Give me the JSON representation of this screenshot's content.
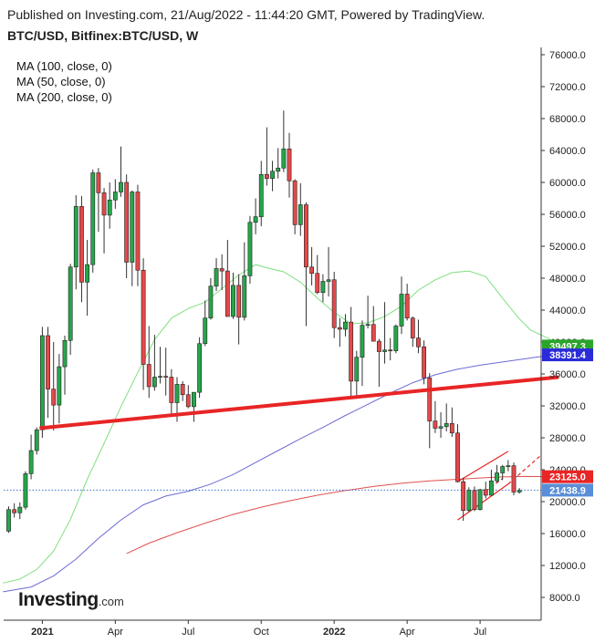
{
  "header": {
    "published": "Published on Investing.com, 21/Aug/2022 - 11:44:20 GMT, Powered by TradingView.",
    "symbol": "BTC/USD, Bitfinex:BTC/USD, W"
  },
  "indicators": [
    {
      "label": "MA (100, close, 0)",
      "color": "#6b6bd6"
    },
    {
      "label": "MA (50, close, 0)",
      "color": "#7ee07e"
    },
    {
      "label": "MA (200, close, 0)",
      "color": "#e05050"
    }
  ],
  "logo": {
    "brand": "Investing",
    "domain": ".com"
  },
  "chart_data": {
    "type": "candlestick",
    "title": "BTC/USD, Bitfinex:BTC/USD, W",
    "y_axis": {
      "side": "right",
      "range": [
        5000,
        77000
      ],
      "ticks": [
        "76000.0",
        "72000.0",
        "68000.0",
        "64000.0",
        "60000.0",
        "56000.0",
        "52000.0",
        "48000.0",
        "44000.0",
        "40000.0",
        "36000.0",
        "32000.0",
        "28000.0",
        "24000.0",
        "20000.0",
        "16000.0",
        "12000.0",
        "8000.0"
      ],
      "tick_values": [
        76000,
        72000,
        68000,
        64000,
        60000,
        56000,
        52000,
        48000,
        44000,
        40000,
        36000,
        32000,
        28000,
        24000,
        20000,
        16000,
        12000,
        8000
      ]
    },
    "x_axis": {
      "labels": [
        "2021",
        "Apr",
        "Jul",
        "Oct",
        "2022",
        "Apr",
        "Jul"
      ],
      "label_weeks": [
        6,
        19,
        32,
        45,
        58,
        71,
        84
      ],
      "week_count": 90
    },
    "price_labels": [
      {
        "text": "39497.3",
        "value": 39497.3,
        "color": "#2aa52a"
      },
      {
        "text": "38391.4",
        "value": 38391.4,
        "color": "#2b2bd9"
      },
      {
        "text": "23125.0",
        "value": 23125.0,
        "color": "#e82525"
      },
      {
        "text": "21438.9",
        "value": 21438.9,
        "color": "#5a8ed8"
      }
    ],
    "last_price": 21438.9,
    "candles": [
      {
        "o": 16300,
        "h": 19400,
        "l": 16100,
        "c": 19000
      },
      {
        "o": 19000,
        "h": 19800,
        "l": 18000,
        "c": 18600
      },
      {
        "o": 18600,
        "h": 19900,
        "l": 17800,
        "c": 19300
      },
      {
        "o": 19300,
        "h": 23800,
        "l": 19000,
        "c": 23500
      },
      {
        "o": 23500,
        "h": 28400,
        "l": 22800,
        "c": 26400
      },
      {
        "o": 26400,
        "h": 29300,
        "l": 25900,
        "c": 29000
      },
      {
        "o": 29000,
        "h": 41900,
        "l": 28000,
        "c": 40800
      },
      {
        "o": 40800,
        "h": 41900,
        "l": 30500,
        "c": 34100
      },
      {
        "o": 34100,
        "h": 40000,
        "l": 28900,
        "c": 32100
      },
      {
        "o": 32100,
        "h": 38500,
        "l": 29800,
        "c": 36900
      },
      {
        "o": 36900,
        "h": 40800,
        "l": 33400,
        "c": 40200
      },
      {
        "o": 40200,
        "h": 49800,
        "l": 38400,
        "c": 49400
      },
      {
        "o": 49400,
        "h": 58400,
        "l": 46600,
        "c": 57000
      },
      {
        "o": 57000,
        "h": 58300,
        "l": 45000,
        "c": 47500
      },
      {
        "o": 47500,
        "h": 52800,
        "l": 43300,
        "c": 49700
      },
      {
        "o": 49700,
        "h": 61600,
        "l": 48700,
        "c": 61200
      },
      {
        "o": 61200,
        "h": 61800,
        "l": 53800,
        "c": 58700
      },
      {
        "o": 58700,
        "h": 59300,
        "l": 51100,
        "c": 55900
      },
      {
        "o": 55900,
        "h": 60000,
        "l": 54200,
        "c": 57800
      },
      {
        "o": 57800,
        "h": 60400,
        "l": 56700,
        "c": 58800
      },
      {
        "o": 58800,
        "h": 64500,
        "l": 58200,
        "c": 60000
      },
      {
        "o": 60000,
        "h": 61000,
        "l": 48000,
        "c": 50000
      },
      {
        "o": 50000,
        "h": 59000,
        "l": 47000,
        "c": 58800
      },
      {
        "o": 58800,
        "h": 59700,
        "l": 47000,
        "c": 49000
      },
      {
        "o": 49000,
        "h": 50500,
        "l": 34000,
        "c": 37200
      },
      {
        "o": 37200,
        "h": 42000,
        "l": 33000,
        "c": 34400
      },
      {
        "o": 34400,
        "h": 40900,
        "l": 33900,
        "c": 35600
      },
      {
        "o": 35600,
        "h": 39400,
        "l": 34800,
        "c": 35700
      },
      {
        "o": 35700,
        "h": 39300,
        "l": 33300,
        "c": 35600
      },
      {
        "o": 35600,
        "h": 36600,
        "l": 31000,
        "c": 32400
      },
      {
        "o": 32400,
        "h": 35600,
        "l": 30000,
        "c": 34700
      },
      {
        "o": 34700,
        "h": 35100,
        "l": 32600,
        "c": 33400
      },
      {
        "o": 33400,
        "h": 34600,
        "l": 31700,
        "c": 31900
      },
      {
        "o": 31900,
        "h": 33700,
        "l": 30000,
        "c": 33700
      },
      {
        "o": 33700,
        "h": 40600,
        "l": 33000,
        "c": 39800
      },
      {
        "o": 39800,
        "h": 45200,
        "l": 39500,
        "c": 43000
      },
      {
        "o": 43000,
        "h": 48000,
        "l": 42800,
        "c": 47000
      },
      {
        "o": 47000,
        "h": 50500,
        "l": 46400,
        "c": 49200
      },
      {
        "o": 49200,
        "h": 51000,
        "l": 46500,
        "c": 48900
      },
      {
        "o": 48900,
        "h": 52800,
        "l": 43200,
        "c": 43200
      },
      {
        "o": 43200,
        "h": 48700,
        "l": 42900,
        "c": 47100
      },
      {
        "o": 47100,
        "h": 48500,
        "l": 39700,
        "c": 43100
      },
      {
        "o": 43100,
        "h": 52500,
        "l": 42700,
        "c": 48300
      },
      {
        "o": 48300,
        "h": 55800,
        "l": 47300,
        "c": 55000
      },
      {
        "o": 55000,
        "h": 58000,
        "l": 53500,
        "c": 55700
      },
      {
        "o": 55700,
        "h": 62700,
        "l": 54500,
        "c": 61000
      },
      {
        "o": 61000,
        "h": 66900,
        "l": 59600,
        "c": 60500
      },
      {
        "o": 60500,
        "h": 62700,
        "l": 58900,
        "c": 61400
      },
      {
        "o": 61400,
        "h": 64300,
        "l": 60500,
        "c": 61800
      },
      {
        "o": 61800,
        "h": 69000,
        "l": 61300,
        "c": 64200
      },
      {
        "o": 64200,
        "h": 66200,
        "l": 58100,
        "c": 60200
      },
      {
        "o": 60200,
        "h": 60400,
        "l": 53500,
        "c": 54700
      },
      {
        "o": 54700,
        "h": 59900,
        "l": 53300,
        "c": 57200
      },
      {
        "o": 57200,
        "h": 57500,
        "l": 42000,
        "c": 49400
      },
      {
        "o": 49400,
        "h": 51900,
        "l": 47100,
        "c": 48600
      },
      {
        "o": 48600,
        "h": 50900,
        "l": 46000,
        "c": 46200
      },
      {
        "o": 46200,
        "h": 48500,
        "l": 45000,
        "c": 47600
      },
      {
        "o": 47600,
        "h": 51900,
        "l": 45700,
        "c": 47800
      },
      {
        "o": 47800,
        "h": 48800,
        "l": 40500,
        "c": 41800
      },
      {
        "o": 41800,
        "h": 43000,
        "l": 39400,
        "c": 41600
      },
      {
        "o": 41600,
        "h": 43500,
        "l": 40700,
        "c": 42500
      },
      {
        "o": 42500,
        "h": 44400,
        "l": 32900,
        "c": 35100
      },
      {
        "o": 35100,
        "h": 38900,
        "l": 32900,
        "c": 38100
      },
      {
        "o": 38100,
        "h": 42700,
        "l": 34500,
        "c": 42100
      },
      {
        "o": 42100,
        "h": 45800,
        "l": 41700,
        "c": 42200
      },
      {
        "o": 42200,
        "h": 44500,
        "l": 40100,
        "c": 40100
      },
      {
        "o": 40100,
        "h": 40400,
        "l": 34400,
        "c": 38800
      },
      {
        "o": 38800,
        "h": 45000,
        "l": 37300,
        "c": 39000
      },
      {
        "o": 39000,
        "h": 40500,
        "l": 37700,
        "c": 38900
      },
      {
        "o": 38900,
        "h": 42200,
        "l": 38600,
        "c": 42000
      },
      {
        "o": 42000,
        "h": 48200,
        "l": 41000,
        "c": 46000
      },
      {
        "o": 46000,
        "h": 47300,
        "l": 42700,
        "c": 43000
      },
      {
        "o": 43000,
        "h": 43200,
        "l": 39400,
        "c": 40500
      },
      {
        "o": 40500,
        "h": 42800,
        "l": 38600,
        "c": 39400
      },
      {
        "o": 39400,
        "h": 40200,
        "l": 34700,
        "c": 35500
      },
      {
        "o": 35500,
        "h": 36100,
        "l": 26700,
        "c": 30100
      },
      {
        "o": 30100,
        "h": 32600,
        "l": 28600,
        "c": 29200
      },
      {
        "o": 29200,
        "h": 31200,
        "l": 28000,
        "c": 29400
      },
      {
        "o": 29400,
        "h": 32300,
        "l": 28800,
        "c": 29800
      },
      {
        "o": 29800,
        "h": 31800,
        "l": 28100,
        "c": 28600
      },
      {
        "o": 28600,
        "h": 29700,
        "l": 22400,
        "c": 22500
      },
      {
        "o": 22500,
        "h": 23000,
        "l": 17600,
        "c": 18900
      },
      {
        "o": 18900,
        "h": 21800,
        "l": 18700,
        "c": 21400
      },
      {
        "o": 21400,
        "h": 21900,
        "l": 18800,
        "c": 19000
      },
      {
        "o": 19000,
        "h": 21600,
        "l": 18900,
        "c": 21500
      },
      {
        "o": 21500,
        "h": 22500,
        "l": 20400,
        "c": 20800
      },
      {
        "o": 20800,
        "h": 24000,
        "l": 20700,
        "c": 22600
      },
      {
        "o": 22600,
        "h": 24600,
        "l": 22400,
        "c": 23600
      },
      {
        "o": 23600,
        "h": 24600,
        "l": 22700,
        "c": 24400
      },
      {
        "o": 24400,
        "h": 25200,
        "l": 23800,
        "c": 24500
      },
      {
        "o": 24500,
        "h": 24900,
        "l": 20800,
        "c": 21200
      },
      {
        "o": 21200,
        "h": 21700,
        "l": 21000,
        "c": 21400
      }
    ],
    "moving_averages": [
      {
        "label": "MA (50, close, 0)",
        "color": "#7ee07e",
        "points": [
          [
            -1,
            9800
          ],
          [
            2,
            10300
          ],
          [
            5,
            11500
          ],
          [
            8,
            13800
          ],
          [
            11,
            17800
          ],
          [
            14,
            22800
          ],
          [
            17,
            27300
          ],
          [
            20,
            31900
          ],
          [
            23,
            36200
          ],
          [
            26,
            40300
          ],
          [
            29,
            43000
          ],
          [
            32,
            44200
          ],
          [
            35,
            45000
          ],
          [
            38,
            46700
          ],
          [
            41,
            48400
          ],
          [
            44,
            49700
          ],
          [
            46,
            49300
          ],
          [
            49,
            48800
          ],
          [
            52,
            47500
          ],
          [
            55,
            45500
          ],
          [
            58,
            43700
          ],
          [
            61,
            42300
          ],
          [
            64,
            42400
          ],
          [
            67,
            43200
          ],
          [
            70,
            44500
          ],
          [
            73,
            46500
          ],
          [
            76,
            47800
          ],
          [
            79,
            48700
          ],
          [
            82,
            48900
          ],
          [
            85,
            48200
          ],
          [
            88,
            45500
          ],
          [
            91,
            42900
          ],
          [
            93,
            41500
          ],
          [
            96,
            40500
          ],
          [
            98,
            39700
          ]
        ]
      },
      {
        "label": "MA (100, close, 0)",
        "color": "#6b6bd6",
        "points": [
          [
            -1,
            8700
          ],
          [
            4,
            9300
          ],
          [
            8,
            10700
          ],
          [
            12,
            12800
          ],
          [
            16,
            15400
          ],
          [
            20,
            17700
          ],
          [
            24,
            19600
          ],
          [
            28,
            20700
          ],
          [
            32,
            21300
          ],
          [
            36,
            22200
          ],
          [
            40,
            23400
          ],
          [
            44,
            24900
          ],
          [
            48,
            26400
          ],
          [
            52,
            27900
          ],
          [
            56,
            29300
          ],
          [
            60,
            30800
          ],
          [
            64,
            32200
          ],
          [
            68,
            33600
          ],
          [
            72,
            34900
          ],
          [
            76,
            35900
          ],
          [
            80,
            36600
          ],
          [
            84,
            37100
          ],
          [
            88,
            37500
          ],
          [
            92,
            37900
          ],
          [
            96,
            38300
          ],
          [
            98,
            38400
          ]
        ]
      },
      {
        "label": "MA (200, close, 0)",
        "color": "#e05050",
        "points": [
          [
            21,
            13500
          ],
          [
            25,
            14800
          ],
          [
            30,
            16100
          ],
          [
            35,
            17300
          ],
          [
            40,
            18400
          ],
          [
            45,
            19300
          ],
          [
            50,
            20100
          ],
          [
            55,
            20800
          ],
          [
            60,
            21400
          ],
          [
            65,
            21900
          ],
          [
            70,
            22300
          ],
          [
            75,
            22600
          ],
          [
            80,
            22800
          ],
          [
            85,
            23000
          ],
          [
            88,
            23100
          ],
          [
            92,
            23150
          ],
          [
            96,
            23130
          ],
          [
            98,
            23125
          ]
        ]
      }
    ],
    "trendlines": [
      {
        "kind": "neckline",
        "color": "#e82525",
        "width": 4,
        "dashed": false,
        "from": [
          5.5,
          29200
        ],
        "to": [
          98,
          35600
        ]
      },
      {
        "kind": "channel-top",
        "color": "#e82525",
        "width": 1.2,
        "dashed": false,
        "from": [
          80,
          22500
        ],
        "to": [
          89,
          26300
        ]
      },
      {
        "kind": "channel-bottom",
        "color": "#e82525",
        "width": 1.2,
        "dashed": false,
        "from": [
          80,
          17700
        ],
        "to": [
          89,
          22200
        ]
      },
      {
        "kind": "channel-top-extension",
        "color": "#e82525",
        "width": 1.2,
        "dashed": true,
        "from": [
          89,
          22200
        ],
        "to": [
          95,
          25900
        ]
      },
      {
        "kind": "channel-mid",
        "color": "#e82525",
        "width": 1.2,
        "dashed": true,
        "from": [
          85,
          21300
        ],
        "to": [
          88,
          22900
        ]
      }
    ],
    "colors": {
      "up": "#26a64a",
      "down": "#e4494a",
      "wick": "#333333"
    }
  }
}
